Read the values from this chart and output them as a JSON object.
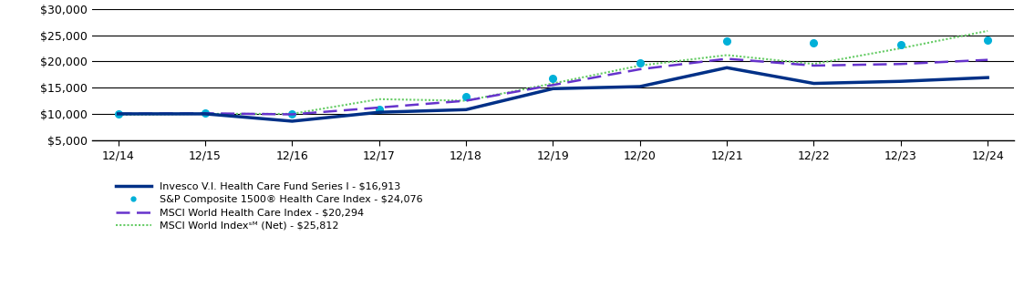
{
  "x_labels": [
    "12/14",
    "12/15",
    "12/16",
    "12/17",
    "12/18",
    "12/19",
    "12/20",
    "12/21",
    "12/22",
    "12/23",
    "12/24"
  ],
  "x_values": [
    0,
    1,
    2,
    3,
    4,
    5,
    6,
    7,
    8,
    9,
    10
  ],
  "series": {
    "fund": {
      "label": "Invesco V.I. Health Care Fund Series I - $16,913",
      "color": "#003087",
      "linewidth": 2.5,
      "values": [
        10000,
        10000,
        8600,
        10300,
        10800,
        14800,
        15200,
        18800,
        15800,
        16200,
        16913
      ]
    },
    "sp1500": {
      "label": "S&P Composite 1500® Health Care Index - $24,076",
      "color": "#00B0D8",
      "dot_size": 5.5,
      "values": [
        10000,
        10100,
        10000,
        10800,
        13200,
        16800,
        19800,
        23800,
        23500,
        23200,
        24076
      ]
    },
    "msci_hc": {
      "label": "MSCI World Health Care Index - $20,294",
      "color": "#6633CC",
      "linewidth": 1.8,
      "values": [
        10000,
        10100,
        9900,
        11200,
        12500,
        15500,
        18500,
        20500,
        19200,
        19500,
        20294
      ]
    },
    "msci_world": {
      "label": "MSCI World Indexˢᴹ (Net) - $25,812",
      "color": "#66CC66",
      "linewidth": 1.5,
      "values": [
        9800,
        10000,
        10000,
        12800,
        12500,
        15800,
        19200,
        21200,
        19500,
        22500,
        25812
      ]
    }
  },
  "ylim": [
    5000,
    30000
  ],
  "yticks": [
    5000,
    10000,
    15000,
    20000,
    25000,
    30000
  ],
  "background_color": "#ffffff",
  "grid_color": "#000000",
  "legend_labels": [
    "Invesco V.I. Health Care Fund Series I - $16,913",
    "S&P Composite 1500® Health Care Index - $24,076",
    "MSCI World Health Care Index - $20,294",
    "MSCI World Indexˢᴹ (Net) - $25,812"
  ]
}
